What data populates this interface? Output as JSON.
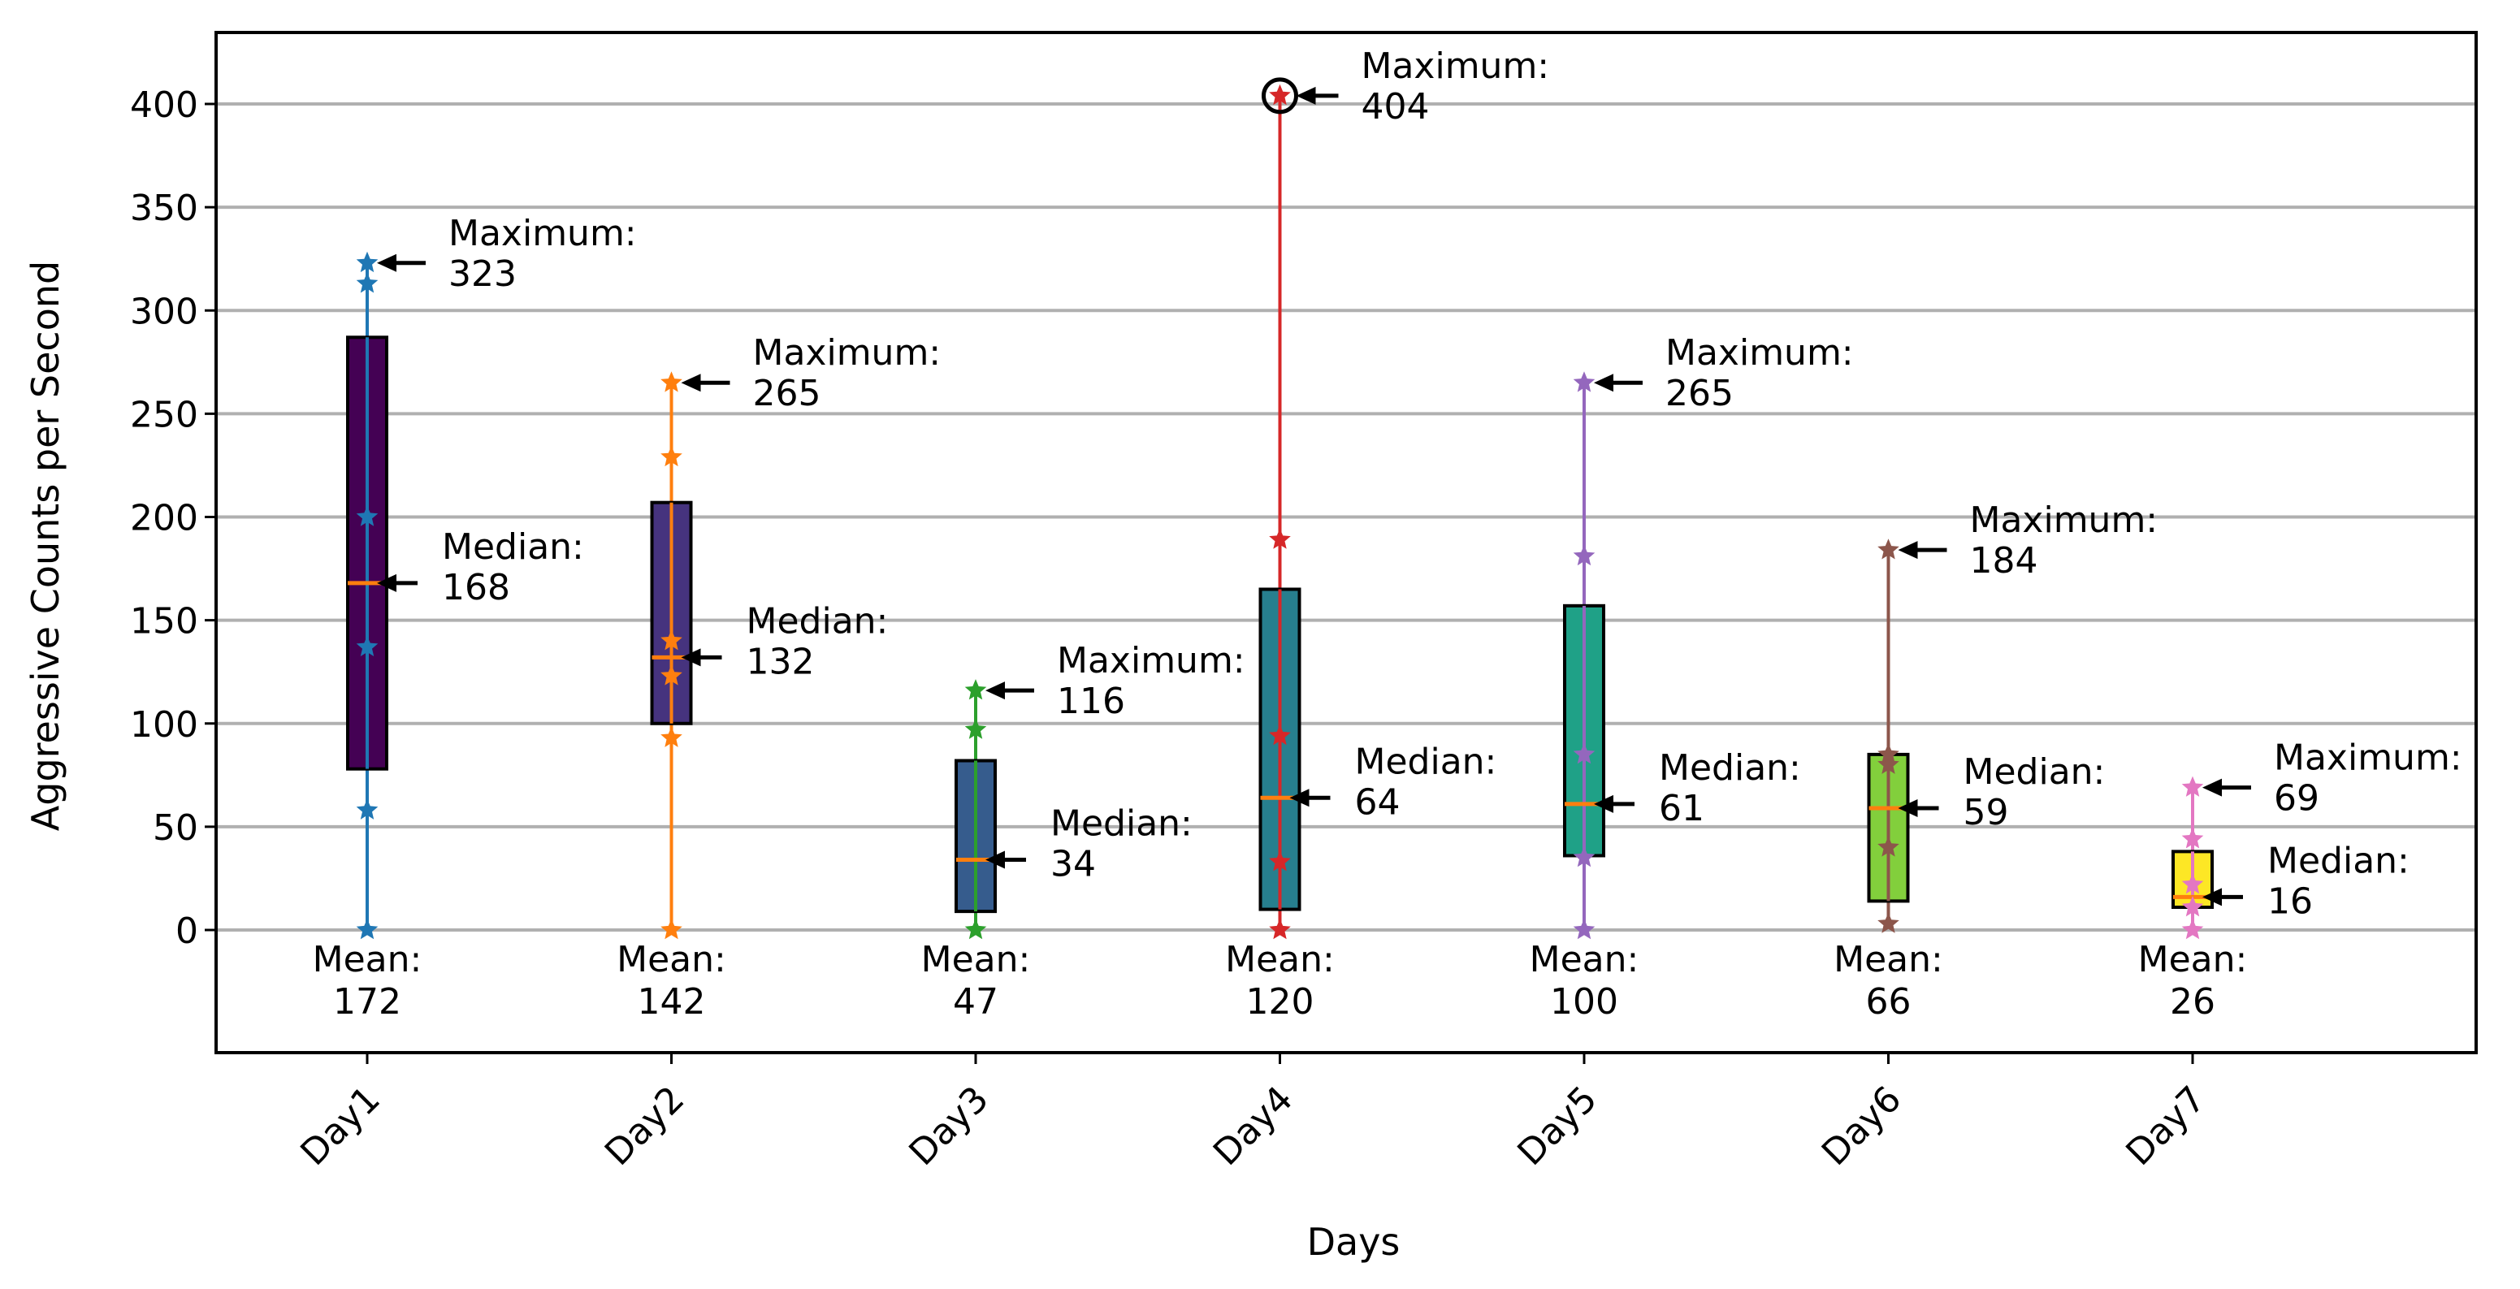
{
  "chart_data": {
    "type": "box",
    "xlabel": "Days",
    "ylabel": "Aggressive Counts per Second",
    "ylim": [
      -60,
      435
    ],
    "yticks": [
      0,
      50,
      100,
      150,
      200,
      250,
      300,
      350,
      400
    ],
    "grid": "horizontal",
    "categories": [
      "Day1",
      "Day2",
      "Day3",
      "Day4",
      "Day5",
      "Day6",
      "Day7"
    ],
    "labels": {
      "maximum": "Maximum:",
      "median": "Median:",
      "mean": "Mean:"
    },
    "series": [
      {
        "category": "Day1",
        "q1": 78,
        "q3": 287,
        "median": 168,
        "mean": 172,
        "max": 323,
        "min": 0,
        "points": [
          0,
          58,
          137,
          200,
          313,
          323
        ],
        "point_color": "#1f77b4",
        "box_color": "#440154",
        "mean_text": "172",
        "median_text": "168",
        "max_text": "323"
      },
      {
        "category": "Day2",
        "q1": 100,
        "q3": 207,
        "median": 132,
        "mean": 142,
        "max": 265,
        "min": 0,
        "points": [
          0,
          93,
          123,
          140,
          229,
          265
        ],
        "point_color": "#ff7f0e",
        "box_color": "#46337e",
        "mean_text": "142",
        "median_text": "132",
        "max_text": "265"
      },
      {
        "category": "Day3",
        "q1": 9,
        "q3": 82,
        "median": 34,
        "mean": 47,
        "max": 116,
        "min": 0,
        "points": [
          0,
          97,
          116
        ],
        "point_color": "#2ca02c",
        "box_color": "#365c8d",
        "mean_text": "47",
        "median_text": "34",
        "max_text": "116"
      },
      {
        "category": "Day4",
        "q1": 10,
        "q3": 165,
        "median": 64,
        "mean": 120,
        "max": 404,
        "min": 0,
        "points": [
          0,
          33,
          94,
          189,
          404
        ],
        "point_color": "#d62728",
        "box_color": "#277f8e",
        "mean_text": "120",
        "median_text": "64",
        "max_text": "404",
        "max_circled": true
      },
      {
        "category": "Day5",
        "q1": 36,
        "q3": 157,
        "median": 61,
        "mean": 100,
        "max": 265,
        "min": 0,
        "points": [
          0,
          35,
          85,
          181,
          265
        ],
        "point_color": "#9467bd",
        "box_color": "#1fa187",
        "mean_text": "100",
        "median_text": "61",
        "max_text": "265"
      },
      {
        "category": "Day6",
        "q1": 14,
        "q3": 85,
        "median": 59,
        "mean": 66,
        "max": 184,
        "min": 3,
        "points": [
          3,
          40,
          80,
          85,
          184
        ],
        "point_color": "#8c564b",
        "box_color": "#82cf3c",
        "mean_text": "66",
        "median_text": "59",
        "max_text": "184"
      },
      {
        "category": "Day7",
        "q1": 11,
        "q3": 38,
        "median": 16,
        "mean": 26,
        "max": 69,
        "min": 0,
        "points": [
          0,
          11,
          22,
          44,
          69
        ],
        "point_color": "#e377c2",
        "box_color": "#fde725",
        "mean_text": "26",
        "median_text": "16",
        "max_text": "69"
      }
    ]
  }
}
